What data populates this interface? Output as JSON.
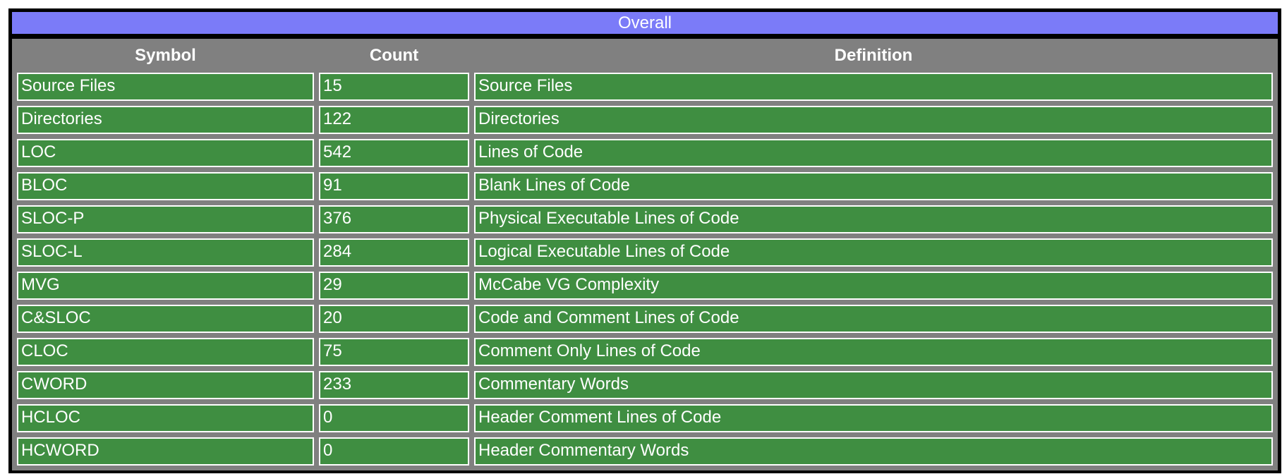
{
  "report": {
    "title": "Overall",
    "columns": [
      "Symbol",
      "Count",
      "Definition"
    ],
    "rows": [
      {
        "symbol": "Source Files",
        "count": "15",
        "definition": "Source Files"
      },
      {
        "symbol": "Directories",
        "count": "122",
        "definition": "Directories"
      },
      {
        "symbol": "LOC",
        "count": "542",
        "definition": "Lines of Code"
      },
      {
        "symbol": "BLOC",
        "count": "91",
        "definition": "Blank Lines of Code"
      },
      {
        "symbol": "SLOC-P",
        "count": "376",
        "definition": "Physical Executable Lines of Code"
      },
      {
        "symbol": "SLOC-L",
        "count": "284",
        "definition": "Logical Executable Lines of Code"
      },
      {
        "symbol": "MVG",
        "count": "29",
        "definition": "McCabe VG Complexity"
      },
      {
        "symbol": "C&SLOC",
        "count": "20",
        "definition": "Code and Comment Lines of Code"
      },
      {
        "symbol": "CLOC",
        "count": "75",
        "definition": "Comment Only Lines of Code"
      },
      {
        "symbol": "CWORD",
        "count": "233",
        "definition": "Commentary Words"
      },
      {
        "symbol": "HCLOC",
        "count": "0",
        "definition": "Header Comment Lines of Code"
      },
      {
        "symbol": "HCWORD",
        "count": "0",
        "definition": "Header Commentary Words"
      }
    ],
    "colors": {
      "title_bg": "#7b7bf8",
      "table_bg": "#808080",
      "cell_bg": "#3f8e41",
      "frame": "#000000",
      "text": "#ffffff"
    }
  }
}
